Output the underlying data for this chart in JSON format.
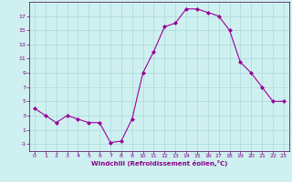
{
  "x": [
    0,
    1,
    2,
    3,
    4,
    5,
    6,
    7,
    8,
    9,
    10,
    11,
    12,
    13,
    14,
    15,
    16,
    17,
    18,
    19,
    20,
    21,
    22,
    23
  ],
  "y": [
    4,
    3,
    2,
    3,
    2.5,
    2,
    2,
    -0.8,
    -0.6,
    2.5,
    9,
    12,
    15.5,
    16,
    18,
    18,
    17.5,
    17,
    15,
    10.5,
    9,
    7,
    5,
    5
  ],
  "line_color": "#990099",
  "marker": "D",
  "marker_size": 2,
  "bg_color": "#cff0f0",
  "grid_color": "#aad8d8",
  "xlabel": "Windchill (Refroidissement éolien,°C)",
  "yticks": [
    -1,
    1,
    3,
    5,
    7,
    9,
    11,
    13,
    15,
    17
  ],
  "xticks": [
    0,
    1,
    2,
    3,
    4,
    5,
    6,
    7,
    8,
    9,
    10,
    11,
    12,
    13,
    14,
    15,
    16,
    17,
    18,
    19,
    20,
    21,
    22,
    23
  ],
  "ylim": [
    -2,
    19
  ],
  "xlim": [
    -0.5,
    23.5
  ],
  "tick_color": "#880088",
  "xlabel_color": "#880088"
}
